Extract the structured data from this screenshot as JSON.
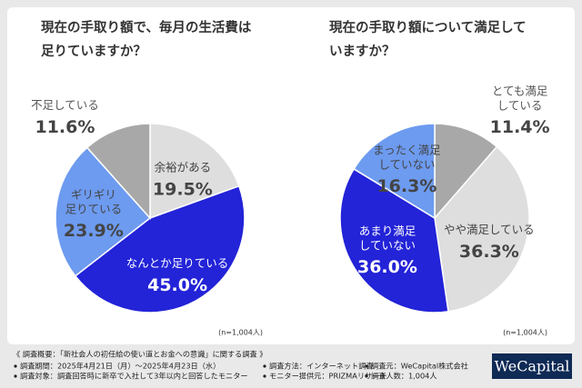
{
  "chart_data": [
    {
      "type": "pie",
      "title": [
        "現在の手取り額で、毎月の生活費は",
        "足りていますか？"
      ],
      "categories": [
        "余裕がある",
        "なんとか足りている",
        "ギリギリ\n足りている",
        "不足している"
      ],
      "values": [
        19.5,
        45.0,
        23.9,
        11.6
      ],
      "value_labels": [
        "19.5%",
        "45.0%",
        "23.9%",
        "11.6%"
      ],
      "colors": [
        "#dedede",
        "#2323d8",
        "#6d9bf0",
        "#a8a8a8"
      ],
      "note": "(n=1,004人)"
    },
    {
      "type": "pie",
      "title": [
        "現在の手取り額について満足して",
        "いますか？"
      ],
      "categories": [
        "とても満足\nしている",
        "やや満足している",
        "あまり満足\nしていない",
        "まったく満足\nしていない"
      ],
      "values": [
        11.4,
        36.3,
        36.0,
        16.3
      ],
      "value_labels": [
        "11.4%",
        "36.3%",
        "36.0%",
        "16.3%"
      ],
      "colors": [
        "#a8a8a8",
        "#dedede",
        "#2323d8",
        "#6d9bf0"
      ],
      "note": "(n=1,004人)"
    }
  ],
  "footer": {
    "heading": "《 調査概要：「新社会人の初任給の使い道とお金への意識」に関する調査 》",
    "items": [
      [
        "調査期間：2025年4月21日（月）〜2025年4月23日（水）",
        "調査方法：インターネット調査",
        "調査元：WeCapital株式会社"
      ],
      [
        "調査対象：調査回答時に新卒で入社して3年以内と回答したモニター",
        "モニター提供元：PRIZMAリサーチ",
        "調査人数：1,004人"
      ]
    ],
    "logo": "WeCapital"
  }
}
